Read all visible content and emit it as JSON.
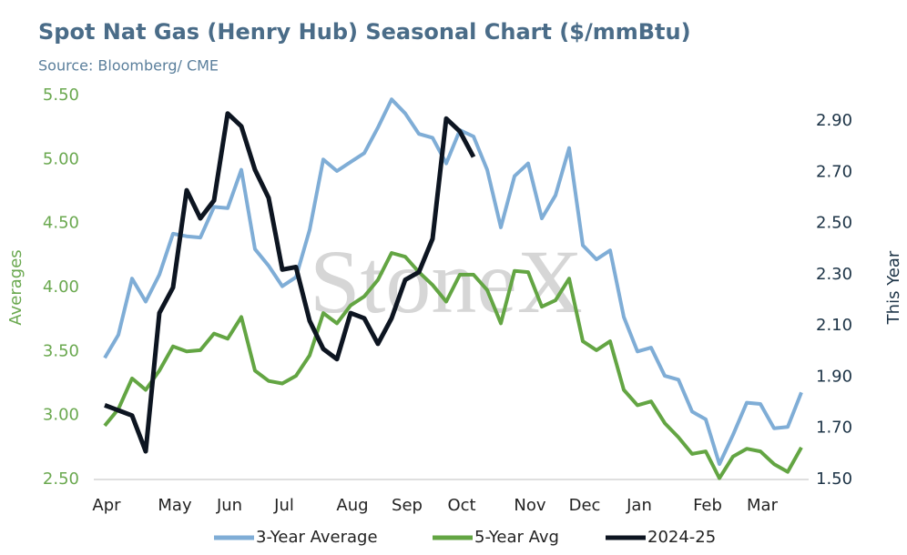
{
  "chart_data": {
    "type": "line",
    "title": "Spot Nat Gas (Henry Hub) Seasonal Chart ($/mmBtu)",
    "subtitle": "Source: Bloomberg/ CME",
    "watermark": "StoneX",
    "ylabel": "Averages",
    "y2label": "This Year",
    "categories": [
      "Apr",
      null,
      null,
      null,
      null,
      "May",
      null,
      null,
      null,
      "Jun",
      null,
      null,
      null,
      "Jul",
      null,
      null,
      null,
      null,
      "Aug",
      null,
      null,
      null,
      "Sep",
      null,
      null,
      null,
      "Oct",
      null,
      null,
      null,
      null,
      "Nov",
      null,
      null,
      null,
      "Dec",
      null,
      null,
      null,
      "Jan",
      null,
      null,
      null,
      null,
      "Feb",
      null,
      null,
      null,
      "Mar",
      null,
      null,
      null
    ],
    "series": [
      {
        "name": "3-Year Average",
        "color": "#7fadd6",
        "axis": "y",
        "values": [
          3.45,
          3.63,
          4.07,
          3.89,
          4.1,
          4.42,
          4.4,
          4.39,
          4.63,
          4.62,
          4.92,
          4.3,
          4.17,
          4.01,
          4.08,
          4.45,
          5.0,
          4.91,
          4.98,
          5.05,
          5.25,
          5.47,
          5.36,
          5.2,
          5.17,
          4.97,
          5.23,
          5.18,
          4.92,
          4.47,
          4.87,
          4.97,
          4.54,
          4.72,
          5.09,
          4.33,
          4.22,
          4.29,
          3.77,
          3.5,
          3.53,
          3.31,
          3.28,
          3.03,
          2.97,
          2.62,
          2.85,
          3.1,
          3.09,
          2.9,
          2.91,
          3.18
        ]
      },
      {
        "name": "5-Year Avg",
        "color": "#63a543",
        "axis": "y",
        "values": [
          2.92,
          3.05,
          3.29,
          3.2,
          3.35,
          3.54,
          3.5,
          3.51,
          3.64,
          3.6,
          3.77,
          3.35,
          3.27,
          3.25,
          3.31,
          3.47,
          3.8,
          3.72,
          3.86,
          3.93,
          4.06,
          4.27,
          4.24,
          4.12,
          4.02,
          3.89,
          4.1,
          4.1,
          3.98,
          3.72,
          4.13,
          4.12,
          3.85,
          3.9,
          4.07,
          3.58,
          3.51,
          3.58,
          3.2,
          3.08,
          3.11,
          2.94,
          2.83,
          2.7,
          2.72,
          2.51,
          2.68,
          2.74,
          2.72,
          2.62,
          2.56,
          2.75
        ]
      },
      {
        "name": "2024-25",
        "color": "#0d1521",
        "axis": "y2",
        "values": [
          1.79,
          1.77,
          1.75,
          1.61,
          2.15,
          2.25,
          2.63,
          2.52,
          2.59,
          2.93,
          2.88,
          2.71,
          2.6,
          2.32,
          2.33,
          2.12,
          2.01,
          1.97,
          2.15,
          2.13,
          2.03,
          2.13,
          2.28,
          2.31,
          2.44,
          2.91,
          2.86,
          2.76,
          null,
          null,
          null,
          null,
          null,
          null,
          null,
          null,
          null,
          null,
          null,
          null,
          null,
          null,
          null,
          null,
          null,
          null,
          null,
          null,
          null,
          null,
          null,
          null
        ]
      }
    ],
    "ylim": [
      2.5,
      5.5
    ],
    "yticks": [
      {
        "value": 2.5,
        "label": "2.50"
      },
      {
        "value": 3,
        "label": "3.00"
      },
      {
        "value": 3.5,
        "label": "3.50"
      },
      {
        "value": 4,
        "label": "4.00"
      },
      {
        "value": 4.5,
        "label": "4.50"
      },
      {
        "value": 5,
        "label": "5.00"
      },
      {
        "value": 5.5,
        "label": "5.50"
      }
    ],
    "y2lim": [
      1.5,
      3.0
    ],
    "y2ticks": [
      {
        "value": 1.5,
        "label": "1.50"
      },
      {
        "value": 1.7,
        "label": "1.70"
      },
      {
        "value": 1.9,
        "label": "1.90"
      },
      {
        "value": 2.1,
        "label": "2.10"
      },
      {
        "value": 2.3,
        "label": "2.30"
      },
      {
        "value": 2.5,
        "label": "2.50"
      },
      {
        "value": 2.7,
        "label": "2.70"
      },
      {
        "value": 2.9,
        "label": "2.90"
      }
    ],
    "ytick_color": "#6aa84f",
    "y2tick_color": "#1c3346",
    "legend": "bottom"
  }
}
